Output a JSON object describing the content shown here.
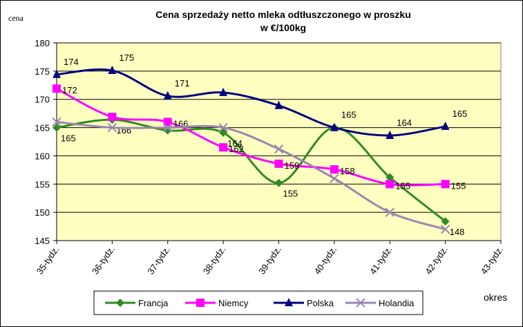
{
  "chart_data": {
    "type": "line",
    "title": "Cena sprzedaży netto mleka odtłuszczonego w proszku",
    "subtitle": "w €/100kg",
    "y_label": "cena",
    "x_label": "okres",
    "categories": [
      "35-tydz.",
      "36-tydz.",
      "37-tydz.",
      "38-tydz.",
      "39-tydz.",
      "40-tydz.",
      "41-tydz.",
      "42-tydz.",
      "43-tydz."
    ],
    "series": [
      {
        "name": "Francja",
        "color": "#2e8b22",
        "marker": "diamond",
        "values": [
          165,
          166.4,
          164.5,
          164.1,
          155.2,
          165,
          156.2,
          148.4,
          null
        ],
        "value_labels": [
          "165",
          "166",
          null,
          "164",
          "155",
          null,
          null,
          "148",
          null
        ]
      },
      {
        "name": "Niemcy",
        "color": "#ff00ff",
        "marker": "square",
        "values": [
          171.9,
          166.9,
          166,
          161.5,
          158.6,
          157.6,
          155,
          155,
          null
        ],
        "value_labels": [
          "172",
          null,
          "166",
          "162",
          "159",
          "158",
          "155",
          "155",
          null
        ]
      },
      {
        "name": "Polska",
        "color": "#000080",
        "marker": "triangle",
        "values": [
          174.4,
          175.1,
          170.6,
          171.2,
          168.9,
          165,
          163.6,
          165.2,
          null
        ],
        "value_labels": [
          "174",
          "175",
          "171",
          null,
          null,
          "165",
          "164",
          "165",
          null
        ]
      },
      {
        "name": "Holandia",
        "color": "#9a87b0",
        "marker": "x",
        "values": [
          166,
          165,
          165,
          165,
          161.2,
          156,
          150,
          147,
          null
        ]
      }
    ],
    "ylim": [
      145,
      180
    ],
    "yticks": [
      145,
      150,
      155,
      160,
      165,
      170,
      175,
      180
    ],
    "grid": true,
    "legend": "bottom",
    "plot_background": "#ffffc0"
  }
}
